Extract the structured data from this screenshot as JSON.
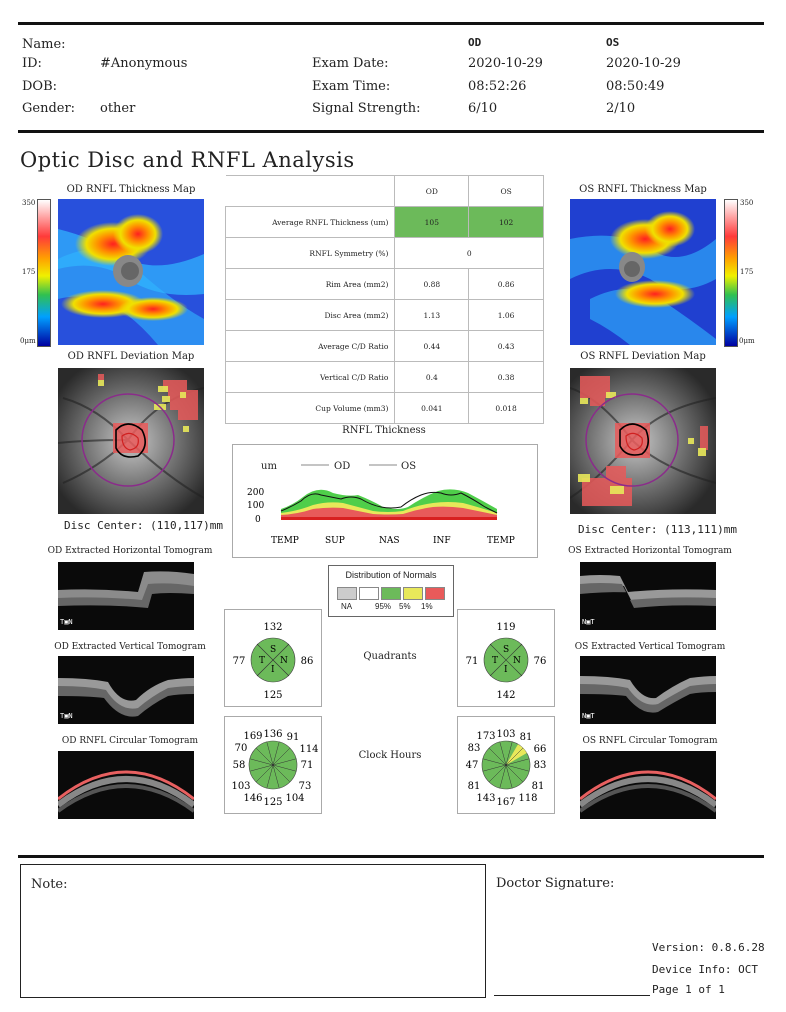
{
  "patient": {
    "name_label": "Name:",
    "id_label": "ID:",
    "id_value": "#Anonymous",
    "dob_label": "DOB:",
    "gender_label": "Gender:",
    "gender_value": "other"
  },
  "exam": {
    "od_label": "OD",
    "os_label": "OS",
    "date_label": "Exam Date:",
    "od_date": "2020-10-29",
    "os_date": "2020-10-29",
    "time_label": "Exam Time:",
    "od_time": "08:52:26",
    "os_time": "08:50:49",
    "signal_label": "Signal Strength:",
    "od_signal": "6/10",
    "os_signal": "2/10"
  },
  "title": "Optic Disc and RNFL Analysis",
  "od": {
    "thickness_map_title": "OD RNFL Thickness Map",
    "deviation_map_title": "OD RNFL Deviation Map",
    "disc_center": "Disc Center: (110,117)mm",
    "h_tomo_title": "OD Extracted Horizontal Tomogram",
    "v_tomo_title": "OD Extracted Vertical Tomogram",
    "c_tomo_title": "OD RNFL Circular Tomogram",
    "h_tomo_tag": "T▣N",
    "v_tomo_tag": "T▣N"
  },
  "os": {
    "thickness_map_title": "OS RNFL Thickness Map",
    "deviation_map_title": "OS RNFL Deviation Map",
    "disc_center": "Disc Center: (113,111)mm",
    "h_tomo_title": "OS Extracted Horizontal Tomogram",
    "v_tomo_title": "OS Extracted Vertical Tomogram",
    "c_tomo_title": "OS RNFL Circular Tomogram",
    "h_tomo_tag": "N▣T",
    "v_tomo_tag": "N▣T"
  },
  "colorbar": {
    "max": "350",
    "mid": "175",
    "min": "0μm"
  },
  "metrics_table": {
    "header_od": "OD",
    "header_os": "OS",
    "rows": [
      {
        "label": "Average RNFL Thickness (um)",
        "od": "105",
        "os": "102",
        "highlight": "#6cba5a"
      },
      {
        "label": "RNFL Symmetry (%)",
        "merged": "0"
      },
      {
        "label": "Rim Area (mm2)",
        "od": "0.88",
        "os": "0.86"
      },
      {
        "label": "Disc Area (mm2)",
        "od": "1.13",
        "os": "1.06"
      },
      {
        "label": "Average C/D Ratio",
        "od": "0.44",
        "os": "0.43"
      },
      {
        "label": "Vertical C/D Ratio",
        "od": "0.4",
        "os": "0.38"
      },
      {
        "label": "Cup Volume (mm3)",
        "od": "0.041",
        "os": "0.018"
      }
    ]
  },
  "rnfl_chart": {
    "title": "RNFL Thickness",
    "unit": "um",
    "legend_od": "OD",
    "legend_os": "OS",
    "y_ticks": [
      "200",
      "100",
      "0"
    ],
    "x_labels": [
      "TEMP",
      "SUP",
      "NAS",
      "INF",
      "TEMP"
    ]
  },
  "normals_legend": {
    "title": "Distribution of Normals",
    "labels": [
      "NA",
      "95%",
      "5%",
      "1%"
    ],
    "colors": [
      "#cccccc",
      "#ffffff",
      "#6cba5a",
      "#e8e85a",
      "#e85a5a"
    ]
  },
  "quadrants": {
    "label": "Quadrants",
    "od": {
      "top": "132",
      "left": "77",
      "right": "86",
      "bottom": "125"
    },
    "os": {
      "top": "119",
      "left": "71",
      "right": "76",
      "bottom": "142"
    },
    "letters": {
      "s": "S",
      "t": "T",
      "n": "N",
      "i": "I"
    }
  },
  "clock_hours": {
    "label": "Clock Hours",
    "od": [
      "136",
      "91",
      "114",
      "71",
      "73",
      "104",
      "125",
      "146",
      "103",
      "58",
      "70",
      "169"
    ],
    "os": [
      "103",
      "81",
      "66",
      "83",
      "81",
      "118",
      "167",
      "143",
      "81",
      "47",
      "83",
      "173"
    ]
  },
  "footer": {
    "note_label": "Note:",
    "signature_label": "Doctor Signature:",
    "version": "Version: 0.8.6.28",
    "device": "Device Info: OCT",
    "page": "Page 1 of 1"
  },
  "colors": {
    "green": "#6cba5a",
    "yellow": "#e8e85a",
    "red": "#e85a5a",
    "purple": "#8b2b8b"
  }
}
